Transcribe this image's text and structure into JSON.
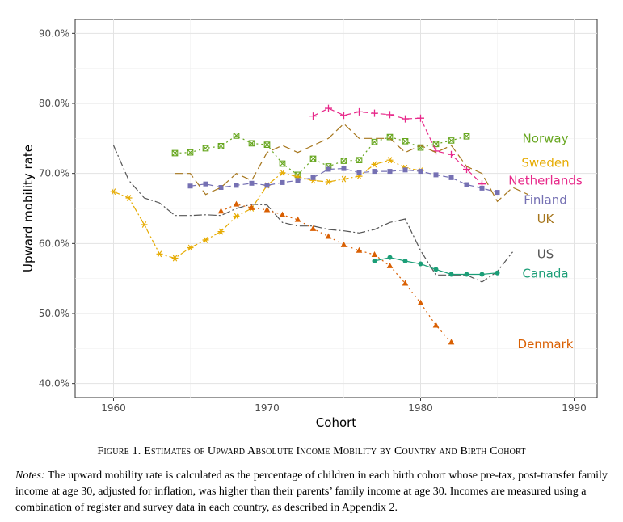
{
  "chart_data": {
    "type": "line",
    "xlabel": "Cohort",
    "ylabel": "Upward mobility rate",
    "xlim": [
      1957.5,
      1991.5
    ],
    "ylim": [
      38.0,
      92.0
    ],
    "x_ticks": [
      1960,
      1970,
      1980,
      1990
    ],
    "x_tick_labels": [
      "1960",
      "1970",
      "1980",
      "1990"
    ],
    "y_ticks": [
      40,
      50,
      60,
      70,
      80,
      90
    ],
    "y_tick_labels": [
      "40.0%",
      "50.0%",
      "60.0%",
      "70.0%",
      "80.0%",
      "90.0%"
    ],
    "grid": true,
    "legend": "inline labels at right",
    "series": [
      {
        "name": "Norway",
        "color": "#66a61e",
        "dash": "2,4",
        "marker": "boxx",
        "x": [
          1964,
          1965,
          1966,
          1967,
          1968,
          1969,
          1970,
          1971,
          1972,
          1973,
          1974,
          1975,
          1976,
          1977,
          1978,
          1979,
          1980,
          1981,
          1982,
          1983
        ],
        "y": [
          72.9,
          73.0,
          73.6,
          73.9,
          75.4,
          74.3,
          74.1,
          71.4,
          69.8,
          72.1,
          71.0,
          71.8,
          71.9,
          74.5,
          75.2,
          74.6,
          73.7,
          74.2,
          74.7,
          75.3
        ],
        "label_y": 75.0
      },
      {
        "name": "Sweden",
        "color": "#e6ab02",
        "dash": "8,3,2,3",
        "marker": "asterisk",
        "x": [
          1960,
          1961,
          1962,
          1963,
          1964,
          1965,
          1966,
          1967,
          1968,
          1969,
          1970,
          1971,
          1972,
          1973,
          1974,
          1975,
          1976,
          1977,
          1978,
          1979,
          1980
        ],
        "y": [
          67.4,
          66.5,
          62.7,
          58.5,
          57.9,
          59.4,
          60.5,
          61.7,
          63.9,
          65.0,
          68.3,
          70.1,
          69.5,
          69.0,
          68.8,
          69.2,
          69.6,
          71.3,
          71.9,
          70.8,
          70.4
        ],
        "label_y": 71.5
      },
      {
        "name": "Netherlands",
        "color": "#e7298a",
        "dash": "7,4",
        "marker": "plus",
        "x": [
          1973,
          1974,
          1975,
          1976,
          1977,
          1978,
          1979,
          1980,
          1981,
          1982,
          1983,
          1984
        ],
        "y": [
          78.2,
          79.3,
          78.3,
          78.8,
          78.6,
          78.4,
          77.8,
          77.9,
          73.2,
          72.7,
          70.6,
          68.5
        ],
        "label_y": 69.0
      },
      {
        "name": "Finland",
        "color": "#7570b3",
        "dash": "7,4",
        "marker": "square",
        "x": [
          1965,
          1966,
          1967,
          1968,
          1969,
          1970,
          1971,
          1972,
          1973,
          1974,
          1975,
          1976,
          1977,
          1978,
          1979,
          1980,
          1981,
          1982,
          1983,
          1984,
          1985
        ],
        "y": [
          68.2,
          68.5,
          68.0,
          68.3,
          68.6,
          68.3,
          68.7,
          69.0,
          69.4,
          70.6,
          70.7,
          70.1,
          70.3,
          70.3,
          70.5,
          70.3,
          69.8,
          69.4,
          68.4,
          67.9,
          67.3
        ],
        "label_y": 66.2
      },
      {
        "name": "UK",
        "color": "#a6761d",
        "dash": "10,5",
        "marker": "none",
        "x": [
          1964,
          1965,
          1966,
          1967,
          1968,
          1969,
          1970,
          1971,
          1972,
          1973,
          1974,
          1975,
          1976,
          1977,
          1978,
          1979,
          1980,
          1981,
          1982,
          1983,
          1984,
          1985,
          1986,
          1987
        ],
        "y": [
          70.0,
          70.0,
          67.0,
          68.0,
          70.0,
          69.0,
          73.0,
          74.0,
          73.0,
          74.0,
          75.0,
          77.1,
          75.0,
          75.0,
          75.0,
          73.0,
          74.0,
          73.0,
          74.0,
          71.0,
          70.0,
          66.0,
          68.0,
          67.0
        ],
        "label_y": 63.5
      },
      {
        "name": "US",
        "color": "#555555",
        "dash": "10,3,2,3",
        "marker": "none",
        "x": [
          1960,
          1961,
          1962,
          1963,
          1964,
          1965,
          1966,
          1967,
          1968,
          1969,
          1970,
          1971,
          1972,
          1973,
          1974,
          1975,
          1976,
          1977,
          1978,
          1979,
          1980,
          1981,
          1982,
          1983,
          1984,
          1985,
          1986
        ],
        "y": [
          74.0,
          69.0,
          66.5,
          65.8,
          64.0,
          64.0,
          64.1,
          64.0,
          65.0,
          65.6,
          65.5,
          63.0,
          62.5,
          62.5,
          62.0,
          61.8,
          61.5,
          62.0,
          63.0,
          63.5,
          59.0,
          55.5,
          55.5,
          55.5,
          54.5,
          56.0,
          58.8
        ],
        "label_y": 58.5
      },
      {
        "name": "Canada",
        "color": "#1b9e77",
        "dash": "none",
        "marker": "circle",
        "x": [
          1977,
          1978,
          1979,
          1980,
          1981,
          1982,
          1983,
          1984,
          1985
        ],
        "y": [
          57.5,
          58.0,
          57.5,
          57.1,
          56.3,
          55.6,
          55.6,
          55.6,
          55.8
        ],
        "label_y": 55.7
      },
      {
        "name": "Denmark",
        "color": "#d95f02",
        "dash": "2,4",
        "marker": "triangle",
        "x": [
          1967,
          1968,
          1969,
          1970,
          1971,
          1972,
          1973,
          1974,
          1975,
          1976,
          1977,
          1978,
          1979,
          1980,
          1981,
          1982
        ],
        "y": [
          64.6,
          65.6,
          65.1,
          64.8,
          64.1,
          63.4,
          62.1,
          61.0,
          59.8,
          59.0,
          58.4,
          56.8,
          54.3,
          51.5,
          48.3,
          45.9
        ],
        "label_y": 45.6
      }
    ]
  },
  "caption": {
    "label": "Figure 1.",
    "title": "Estimates of Upward Absolute Income Mobility by Country and Birth Cohort"
  },
  "notes": {
    "label": "Notes:",
    "text": "The upward mobility rate is calculated as the percentage of children in each birth cohort whose pre-tax, post-transfer family income at age 30, adjusted for inflation, was higher than their parents’ family income at age 30. Incomes are measured using a combination of register and survey data in each country, as described in Appendix 2."
  }
}
